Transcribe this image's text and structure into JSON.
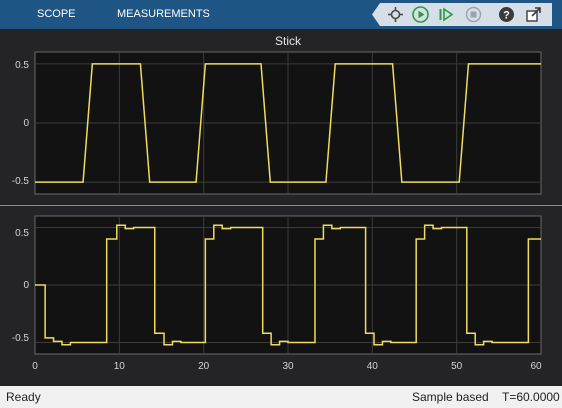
{
  "toolbar": {
    "tabs": [
      {
        "label": "SCOPE"
      },
      {
        "label": "MEASUREMENTS"
      }
    ],
    "controls": [
      {
        "icon": "snapshot-icon"
      },
      {
        "icon": "run-icon"
      },
      {
        "icon": "step-forward-icon"
      },
      {
        "icon": "stop-icon"
      },
      {
        "icon": "help-icon"
      },
      {
        "icon": "undock-icon"
      }
    ],
    "colors": {
      "bar": "#1e5584",
      "accent": "#2a9d3a"
    }
  },
  "status": {
    "state": "Ready",
    "mode": "Sample based",
    "time": "T=60.0000"
  },
  "chart_data": [
    {
      "type": "line",
      "title": "Stick",
      "xlim": [
        0,
        60
      ],
      "ylim": [
        -0.6,
        0.6
      ],
      "y_ticks": [
        "0.5",
        "0",
        "-0.5"
      ],
      "grid": true,
      "line_color": "#f0dc5a",
      "series": [
        {
          "x": [
            0,
            5.7,
            6.8,
            9.5,
            12.5,
            13.6,
            16.5,
            19.1,
            20.2,
            23.6,
            26.8,
            27.9,
            30.5,
            34.5,
            35.6,
            38.1,
            42.4,
            43.5,
            46.0,
            50.3,
            51.4,
            54.1,
            58.4,
            59.5,
            60.0
          ],
          "y": [
            -0.5,
            -0.5,
            0.5,
            0.5,
            0.5,
            -0.5,
            -0.5,
            -0.5,
            0.5,
            0.5,
            0.5,
            -0.5,
            -0.5,
            -0.5,
            0.5,
            0.5,
            0.5,
            -0.5,
            -0.5,
            -0.5,
            0.5,
            0.5,
            0.5,
            0.5,
            0.5
          ]
        }
      ]
    },
    {
      "type": "line",
      "step": true,
      "title": "",
      "xlim": [
        0,
        60
      ],
      "ylim": [
        -0.6,
        0.6
      ],
      "x_ticks": [
        "0",
        "10",
        "20",
        "30",
        "40",
        "50",
        "60"
      ],
      "y_ticks": [
        "0.5",
        "0",
        "-0.5"
      ],
      "grid": true,
      "line_color": "#f0dc5a",
      "series": [
        {
          "x": [
            0,
            1.2,
            2.2,
            3.2,
            4.2,
            5.2,
            8.5,
            9.7,
            10.7,
            11.7,
            14.2,
            15.3,
            16.3,
            17.3,
            20.2,
            21.2,
            22.2,
            23.2,
            27.0,
            28.0,
            29.0,
            30.0,
            33.2,
            34.2,
            35.2,
            36.2,
            39.2,
            40.2,
            41.2,
            42.2,
            45.2,
            46.2,
            47.2,
            48.2,
            51.2,
            52.2,
            53.2,
            54.2,
            58.5,
            59.5,
            60.0
          ],
          "y": [
            0,
            -0.46,
            -0.49,
            -0.52,
            -0.5,
            -0.5,
            0.4,
            0.52,
            0.49,
            0.5,
            -0.42,
            -0.52,
            -0.49,
            -0.5,
            0.4,
            0.52,
            0.49,
            0.5,
            -0.42,
            -0.52,
            -0.49,
            -0.5,
            0.4,
            0.52,
            0.49,
            0.5,
            -0.42,
            -0.52,
            -0.49,
            -0.5,
            0.4,
            0.52,
            0.49,
            0.5,
            -0.42,
            -0.52,
            -0.49,
            -0.5,
            0.4,
            0.4,
            0.4
          ]
        }
      ]
    }
  ]
}
